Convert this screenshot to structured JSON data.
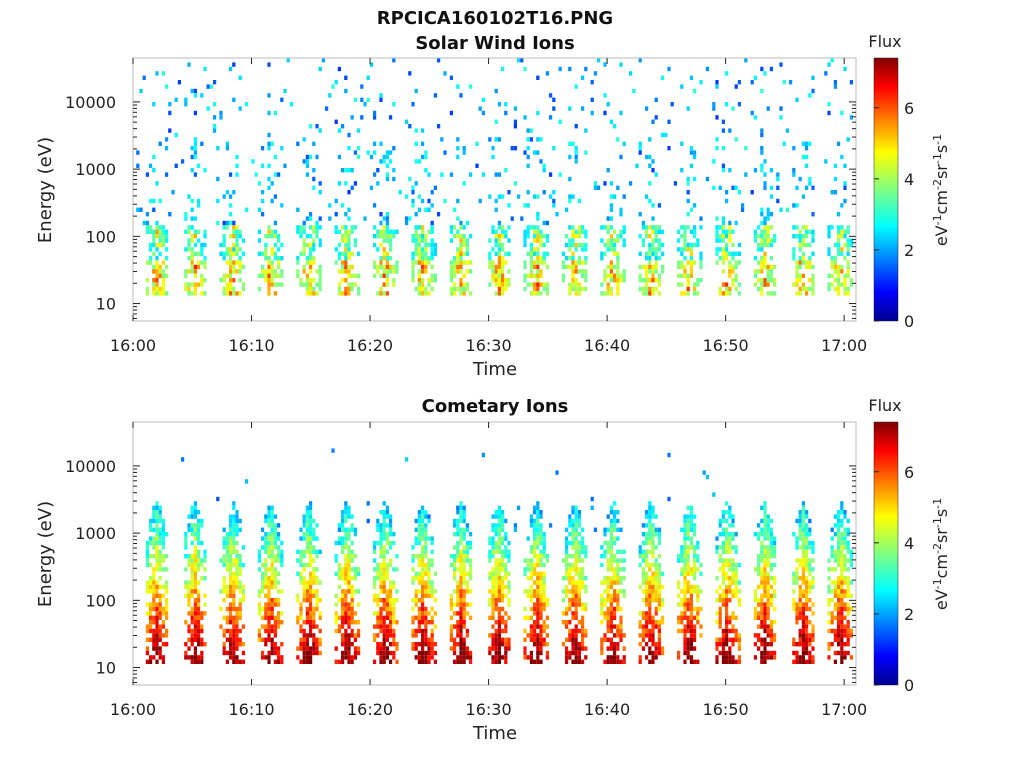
{
  "figure_title": "RPCICA160102T16.PNG",
  "colormap": [
    "#00008f",
    "#0000ff",
    "#0080ff",
    "#00ffff",
    "#80ff80",
    "#ffff00",
    "#ff8000",
    "#ff0000",
    "#800000"
  ],
  "chart_data": [
    {
      "type": "heatmap",
      "title": "Solar Wind Ions",
      "xlabel": "Time",
      "ylabel": "Energy (eV)",
      "x_ticks": [
        "16:00",
        "16:10",
        "16:20",
        "16:30",
        "16:40",
        "16:50",
        "17:00"
      ],
      "x_range": [
        "16:00",
        "17:01"
      ],
      "y_scale": "log",
      "y_ticks": [
        "10",
        "100",
        "1000",
        "10000"
      ],
      "y_range": [
        5.5,
        45000
      ],
      "colorbar": {
        "label": "Flux",
        "units": "eV-1cm-2sr-1s-1",
        "ticks": [
          "0",
          "2",
          "4",
          "6"
        ],
        "range": [
          0,
          7.4
        ]
      },
      "grid": false,
      "description_of_content": "Sparse low-flux (1.5–3) counts scattered 100–30000 eV; intermittent bursts at ~20–150 eV with peak flux ~5–6 repeating every ~3 min"
    },
    {
      "type": "heatmap",
      "title": "Cometary Ions",
      "xlabel": "Time",
      "ylabel": "Energy (eV)",
      "x_ticks": [
        "16:00",
        "16:10",
        "16:20",
        "16:30",
        "16:40",
        "16:50",
        "17:00"
      ],
      "x_range": [
        "16:00",
        "17:01"
      ],
      "y_scale": "log",
      "y_ticks": [
        "10",
        "100",
        "1000",
        "10000"
      ],
      "y_range": [
        5.5,
        45000
      ],
      "colorbar": {
        "label": "Flux",
        "units": "eV-1cm-2sr-1s-1",
        "ticks": [
          "0",
          "2",
          "4",
          "6"
        ],
        "range": [
          0,
          7.4
        ]
      },
      "grid": false,
      "description_of_content": "Periodic bursts every ~3.2 min, flux 6–7 at 20–60 eV decreasing upward to ~1000–3000 eV with flux ~2–3"
    }
  ]
}
